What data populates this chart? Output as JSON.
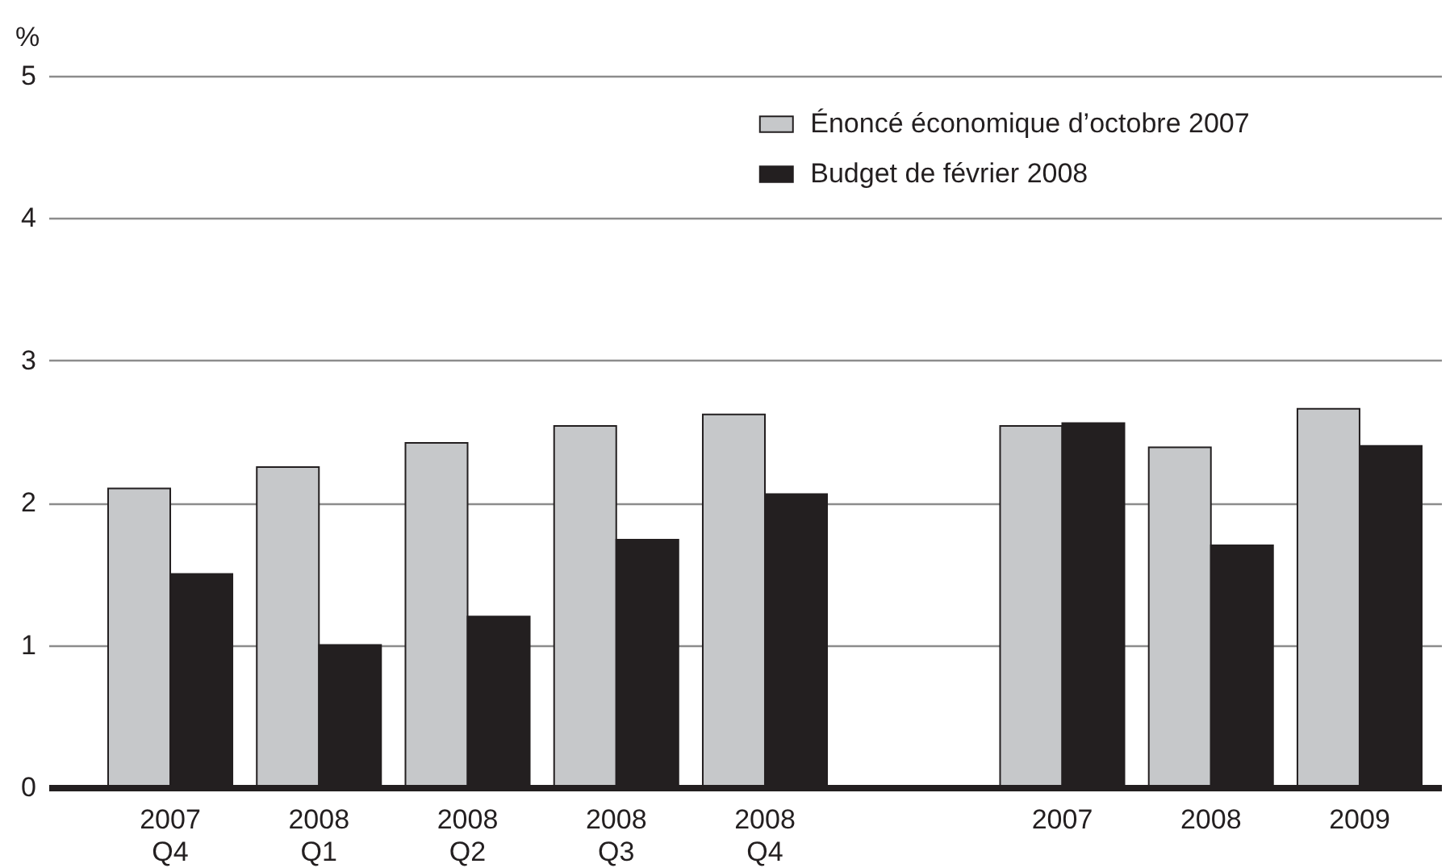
{
  "chart_data": {
    "type": "bar",
    "ylabel": "%",
    "categories": [
      "2007 Q4",
      "2008 Q1",
      "2008 Q2",
      "2008 Q3",
      "2008 Q4",
      null,
      "2007",
      "2008",
      "2009"
    ],
    "series": [
      {
        "name": "Énoncé économique d’octobre 2007",
        "color": "#c6c8ca",
        "values": [
          2.1,
          2.25,
          2.42,
          2.54,
          2.62,
          null,
          2.54,
          2.39,
          2.66
        ]
      },
      {
        "name": "Budget de février 2008",
        "color": "#231f20",
        "values": [
          1.5,
          1.0,
          1.2,
          1.74,
          2.06,
          null,
          2.56,
          1.7,
          2.4
        ]
      }
    ],
    "ylim": [
      0,
      5
    ],
    "yticks": [
      0,
      1,
      2,
      3,
      4,
      5
    ],
    "grid": "y",
    "legend": "top right"
  }
}
